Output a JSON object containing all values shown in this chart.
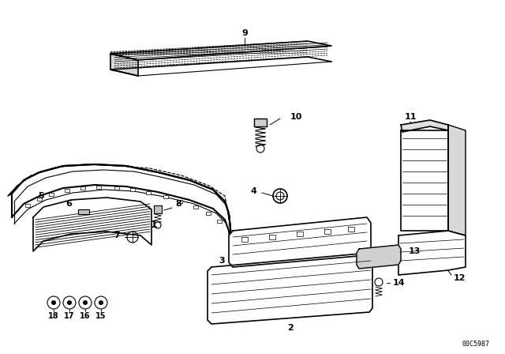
{
  "bg_color": "#ffffff",
  "line_color": "#000000",
  "fig_width": 6.4,
  "fig_height": 4.48,
  "dpi": 100,
  "watermark": "00C5987"
}
